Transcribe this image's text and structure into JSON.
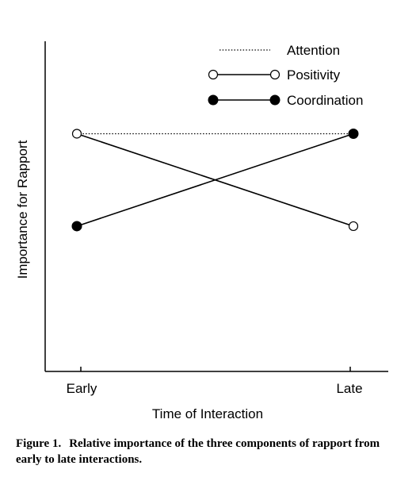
{
  "chart_data": {
    "type": "line",
    "title": "",
    "xlabel": "Time of Interaction",
    "ylabel": "Importance for Rapport",
    "categories": [
      "Early",
      "Late"
    ],
    "ylim": [
      0,
      10
    ],
    "grid": false,
    "legend_position": "top-right",
    "series": [
      {
        "name": "Attention",
        "values": [
          7.2,
          7.2
        ],
        "style": "dotted",
        "marker": "none"
      },
      {
        "name": "Positivity",
        "values": [
          7.2,
          4.4
        ],
        "style": "solid",
        "marker": "open-circle"
      },
      {
        "name": "Coordination",
        "values": [
          4.4,
          7.2
        ],
        "style": "solid",
        "marker": "filled-circle"
      }
    ]
  },
  "caption": {
    "label": "Figure 1.",
    "text": "Relative importance of the three components of rapport from early to late interactions."
  }
}
